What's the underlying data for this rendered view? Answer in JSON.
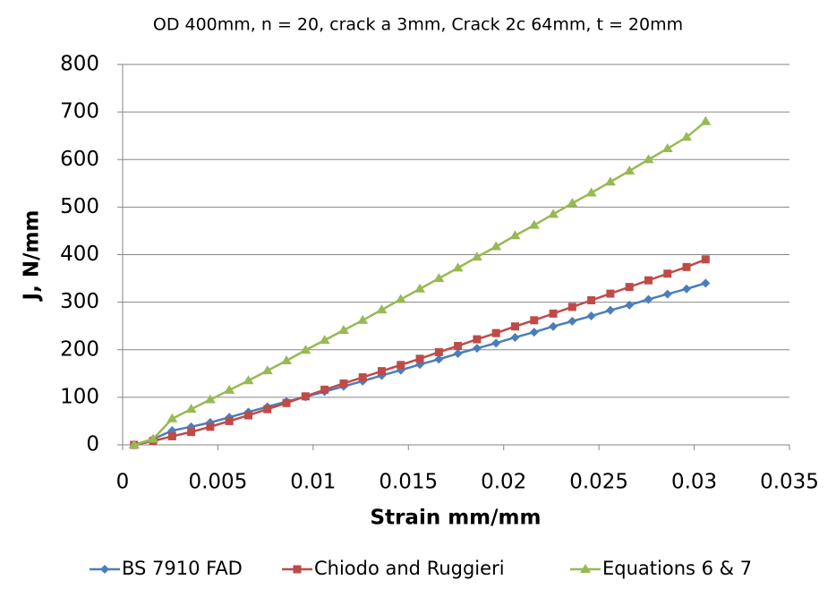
{
  "chart_data": {
    "type": "line",
    "title": "OD  400mm, n = 20, crack a  3mm, Crack 2c  64mm, t = 20mm",
    "x_label": "Strain mm/mm",
    "y_label": "J, N/mm",
    "x": [
      0.0006,
      0.0016,
      0.0026,
      0.0036,
      0.0046,
      0.0056,
      0.0066,
      0.0076,
      0.0086,
      0.0096,
      0.0106,
      0.0116,
      0.0126,
      0.0136,
      0.0146,
      0.0156,
      0.0166,
      0.0176,
      0.0186,
      0.0196,
      0.0206,
      0.0216,
      0.0226,
      0.0236,
      0.0246,
      0.0256,
      0.0266,
      0.0276,
      0.0286,
      0.0296,
      0.0306
    ],
    "series": [
      {
        "name": "BS 7910 FAD",
        "color": "#4a7ebb",
        "marker": "diamond",
        "values": [
          0,
          12,
          30,
          38,
          47,
          58,
          69,
          80,
          91,
          101,
          112,
          123,
          134,
          146,
          157,
          169,
          180,
          192,
          203,
          214,
          226,
          237,
          249,
          260,
          271,
          283,
          294,
          306,
          317,
          328,
          340
        ]
      },
      {
        "name": "Chiodo and Ruggieri",
        "color": "#be4b48",
        "marker": "square",
        "values": [
          0,
          8,
          18,
          27,
          38,
          50,
          62,
          75,
          88,
          102,
          116,
          129,
          142,
          155,
          168,
          181,
          195,
          208,
          222,
          235,
          249,
          262,
          276,
          290,
          304,
          318,
          332,
          346,
          360,
          374,
          390
        ]
      },
      {
        "name": "Equations 6 & 7",
        "color": "#98b954",
        "marker": "triangle",
        "values": [
          0,
          12,
          55,
          75,
          95,
          115,
          135,
          156,
          177,
          199,
          220,
          241,
          262,
          284,
          306,
          328,
          350,
          372,
          395,
          417,
          440,
          462,
          485,
          508,
          530,
          553,
          576,
          600,
          623,
          647,
          680
        ]
      }
    ],
    "xlim": [
      0,
      0.035
    ],
    "xticks": [
      0,
      0.005,
      0.01,
      0.015,
      0.02,
      0.025,
      0.03,
      0.035
    ],
    "ylim": [
      0,
      800
    ],
    "yticks": [
      0,
      100,
      200,
      300,
      400,
      500,
      600,
      700,
      800
    ],
    "grid": true,
    "legend": "bottom"
  }
}
